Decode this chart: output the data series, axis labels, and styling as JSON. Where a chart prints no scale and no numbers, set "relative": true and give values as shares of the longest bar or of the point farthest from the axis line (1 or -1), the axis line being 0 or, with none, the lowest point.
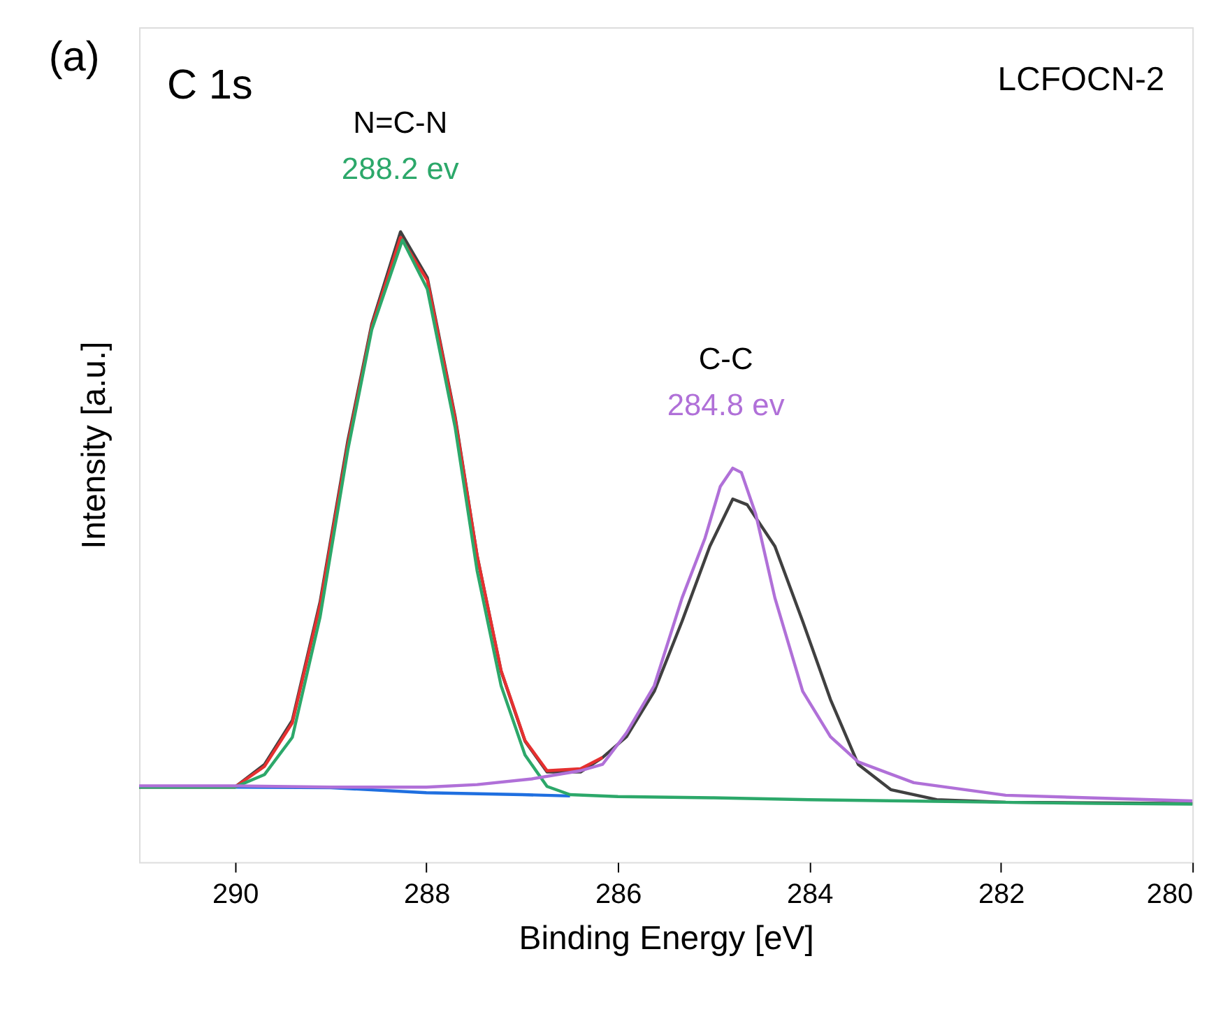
{
  "chart_data": {
    "type": "line",
    "relative": true,
    "xlabel": "Binding Energy [eV]",
    "ylabel": "Intensity [a.u.]",
    "xlim": [
      291,
      280
    ],
    "xticks": [
      290,
      288,
      286,
      284,
      282,
      280
    ],
    "tick_labels": "x",
    "grid": false,
    "marker": "none",
    "line_style": "solid",
    "annotations": [
      "(a)",
      "C 1s",
      "LCFOCN-2",
      "N=C-N",
      {
        "text": "288.2 ev",
        "x": 288.2,
        "y": 1.0
      },
      "C-C",
      {
        "text": "284.8 ev",
        "x": 284.8,
        "y": 0.625
      }
    ],
    "series": [
      {
        "color": "#1f6fe0",
        "x": [
          290,
          289,
          288,
          287,
          286.5
        ],
        "values": [
          0.119,
          0.118,
          0.11,
          0.107,
          0.105
        ]
      },
      {
        "color": "#404040",
        "x": [
          291,
          290,
          289.69,
          289.4,
          289.11,
          288.82,
          288.57,
          288.27,
          287.99,
          287.7,
          287.47,
          287.22,
          286.97,
          286.74,
          286.39,
          286.16,
          285.91,
          285.62,
          285.33,
          285.04,
          284.8,
          284.65,
          284.36,
          284.07,
          283.78,
          283.49,
          283.15,
          282.67,
          281.95,
          280
        ],
        "values": [
          0.119,
          0.119,
          0.155,
          0.225,
          0.413,
          0.669,
          0.854,
          1.0,
          0.927,
          0.707,
          0.486,
          0.303,
          0.192,
          0.143,
          0.143,
          0.166,
          0.199,
          0.271,
          0.382,
          0.501,
          0.576,
          0.567,
          0.501,
          0.382,
          0.258,
          0.155,
          0.115,
          0.099,
          0.095,
          0.093
        ]
      },
      {
        "color": "#e53030",
        "x": [
          290,
          289.69,
          289.4,
          289.11,
          288.82,
          288.57,
          288.27,
          287.99,
          287.7,
          287.47,
          287.22,
          286.97,
          286.74,
          286.39,
          286.16
        ],
        "values": [
          0.119,
          0.152,
          0.221,
          0.408,
          0.663,
          0.85,
          0.991,
          0.923,
          0.704,
          0.486,
          0.304,
          0.193,
          0.145,
          0.148,
          0.166
        ]
      },
      {
        "color": "#2ca86a",
        "x": [
          291,
          290,
          289.69,
          289.4,
          289.11,
          288.82,
          288.57,
          288.25,
          287.99,
          287.7,
          287.47,
          287.22,
          286.97,
          286.74,
          286.5,
          286,
          285,
          284,
          283,
          282,
          281,
          280
        ],
        "values": [
          0.119,
          0.119,
          0.139,
          0.198,
          0.389,
          0.654,
          0.845,
          0.987,
          0.909,
          0.69,
          0.462,
          0.28,
          0.17,
          0.12,
          0.107,
          0.104,
          0.102,
          0.099,
          0.097,
          0.095,
          0.093,
          0.092
        ]
      },
      {
        "color": "#b070d8",
        "x": [
          291,
          290,
          289,
          288,
          287.47,
          286.9,
          286.39,
          286.16,
          285.91,
          285.62,
          285.33,
          285.09,
          284.93,
          284.8,
          284.71,
          284.56,
          284.36,
          284.07,
          283.78,
          283.49,
          282.91,
          281.95,
          280
        ],
        "values": [
          0.121,
          0.121,
          0.119,
          0.119,
          0.123,
          0.132,
          0.145,
          0.155,
          0.205,
          0.28,
          0.419,
          0.514,
          0.596,
          0.625,
          0.618,
          0.552,
          0.419,
          0.271,
          0.199,
          0.159,
          0.126,
          0.106,
          0.097
        ]
      }
    ]
  }
}
